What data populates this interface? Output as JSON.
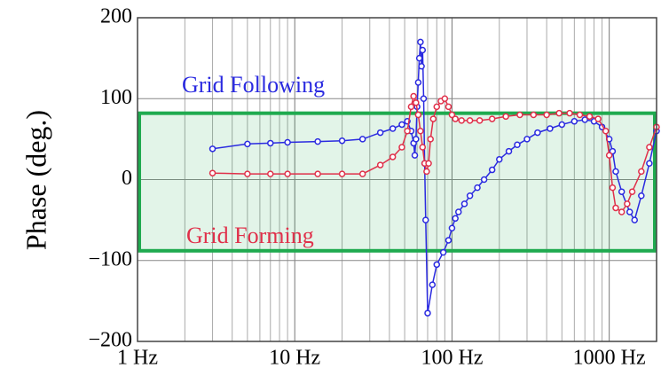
{
  "chart_data": {
    "type": "line",
    "y_label": "Phase (deg.)",
    "log_x": true,
    "grid": true,
    "xlim": [
      1,
      2000
    ],
    "ylim": [
      -200,
      200
    ],
    "xticks": [
      {
        "value": 1,
        "label": "1 Hz"
      },
      {
        "value": 10,
        "label": "10 Hz"
      },
      {
        "value": 100,
        "label": "100 Hz"
      },
      {
        "value": 1000,
        "label": "1000 Hz"
      }
    ],
    "xminor_ticks": [
      2,
      3,
      4,
      5,
      6,
      7,
      8,
      9,
      20,
      30,
      40,
      50,
      60,
      70,
      80,
      90,
      200,
      300,
      400,
      500,
      600,
      700,
      800,
      900
    ],
    "yticks": [
      {
        "value": -200,
        "label": "−200"
      },
      {
        "value": -100,
        "label": "−100"
      },
      0,
      100,
      200
    ],
    "highlight_band": {
      "ylim": [
        -88,
        82
      ],
      "color": "#1faa4f"
    },
    "series": [
      {
        "name": "Grid Following",
        "color": "#2a2ae0",
        "x": [
          3,
          5,
          7,
          9,
          14,
          20,
          27,
          35,
          42,
          48,
          52,
          55,
          57,
          58,
          59,
          60,
          61,
          62,
          63,
          64,
          65,
          66,
          67,
          68,
          70,
          75,
          80,
          88,
          95,
          100,
          105,
          110,
          120,
          130,
          145,
          160,
          180,
          200,
          230,
          260,
          300,
          350,
          420,
          500,
          600,
          700,
          800,
          900,
          1000,
          1050,
          1100,
          1200,
          1350,
          1450,
          1600,
          1800,
          2000
        ],
        "values": [
          38,
          44,
          45,
          46,
          47,
          48,
          50,
          58,
          63,
          68,
          72,
          60,
          45,
          30,
          50,
          90,
          120,
          150,
          170,
          140,
          160,
          100,
          20,
          -50,
          -165,
          -130,
          -105,
          -90,
          -75,
          -60,
          -48,
          -40,
          -30,
          -20,
          -10,
          0,
          12,
          25,
          35,
          43,
          50,
          58,
          63,
          68,
          72,
          74,
          72,
          65,
          50,
          35,
          10,
          -15,
          -40,
          -50,
          -20,
          20,
          60
        ]
      },
      {
        "name": "Grid Forming",
        "color": "#e0304a",
        "x": [
          3,
          5,
          7,
          9,
          14,
          20,
          27,
          35,
          42,
          48,
          52,
          55,
          57,
          59,
          61,
          63,
          65,
          67,
          69,
          71,
          73,
          76,
          80,
          85,
          90,
          95,
          100,
          105,
          115,
          130,
          150,
          180,
          220,
          270,
          330,
          400,
          480,
          560,
          650,
          750,
          850,
          950,
          1000,
          1050,
          1100,
          1200,
          1300,
          1400,
          1600,
          1800,
          2000
        ],
        "values": [
          8,
          7,
          7,
          7,
          7,
          7,
          7,
          18,
          28,
          40,
          60,
          90,
          103,
          95,
          80,
          60,
          40,
          20,
          10,
          20,
          50,
          75,
          90,
          97,
          100,
          90,
          80,
          75,
          73,
          73,
          73,
          75,
          78,
          80,
          80,
          80,
          82,
          82,
          80,
          78,
          75,
          60,
          30,
          -10,
          -35,
          -40,
          -30,
          -15,
          10,
          40,
          65
        ]
      }
    ]
  }
}
